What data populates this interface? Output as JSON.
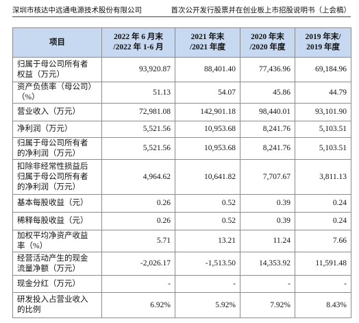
{
  "header": {
    "company": "深圳市核达中远通电源技术股份有限公司",
    "document": "首次公开发行股票并在创业板上市招股说明书（上会稿）"
  },
  "table": {
    "columns": [
      [
        "项目"
      ],
      [
        "2022 年 6 月末",
        "/2022 年 1-6 月"
      ],
      [
        "2021 年末",
        "/2021 年度"
      ],
      [
        "2020 年末",
        "/2020 年度"
      ],
      [
        "2019 年末/",
        "2019 年度"
      ]
    ],
    "rows": [
      {
        "label": [
          "归属于母公司所有者",
          "权益（万元）"
        ],
        "values": [
          "93,920.87",
          "88,401.40",
          "77,436.96",
          "69,184.96"
        ]
      },
      {
        "label": [
          "资产负债率（母公司）",
          "（%）"
        ],
        "values": [
          "51.13",
          "54.07",
          "45.86",
          "44.79"
        ]
      },
      {
        "label": [
          "营业收入（万元）"
        ],
        "values": [
          "72,981.08",
          "142,901.18",
          "98,440.01",
          "93,101.90"
        ]
      },
      {
        "label": [
          "净利润（万元）"
        ],
        "values": [
          "5,521.56",
          "10,953.68",
          "8,241.76",
          "5,103.51"
        ]
      },
      {
        "label": [
          "归属于母公司所有者",
          "的净利润（万元）"
        ],
        "values": [
          "5,521.56",
          "10,953.68",
          "8,241.76",
          "5,103.51"
        ]
      },
      {
        "label": [
          "扣除非经常性损益后",
          "归属于母公司所有者",
          "的净利润（万元）"
        ],
        "values": [
          "4,964.62",
          "10,641.82",
          "7,707.67",
          "3,811.13"
        ]
      },
      {
        "label": [
          "基本每股收益（元）"
        ],
        "values": [
          "0.26",
          "0.52",
          "0.39",
          "0.24"
        ]
      },
      {
        "label": [
          "稀释每股收益（元）"
        ],
        "values": [
          "0.26",
          "0.52",
          "0.39",
          "0.24"
        ]
      },
      {
        "label": [
          "加权平均净资产收益",
          "率（%）"
        ],
        "values": [
          "5.71",
          "13.21",
          "11.24",
          "7.66"
        ]
      },
      {
        "label": [
          "经营活动产生的现金",
          "流量净额（万元）"
        ],
        "values": [
          "-2,026.17",
          "-1,513.50",
          "14,353.92",
          "11,591.48"
        ]
      },
      {
        "label": [
          "现金分红（万元）"
        ],
        "values": [
          "-",
          "-",
          "-",
          "-"
        ]
      },
      {
        "label": [
          "研发投入占营业收入",
          "的比例"
        ],
        "values": [
          "6.92%",
          "5.92%",
          "7.92%",
          "8.43%"
        ]
      }
    ]
  }
}
